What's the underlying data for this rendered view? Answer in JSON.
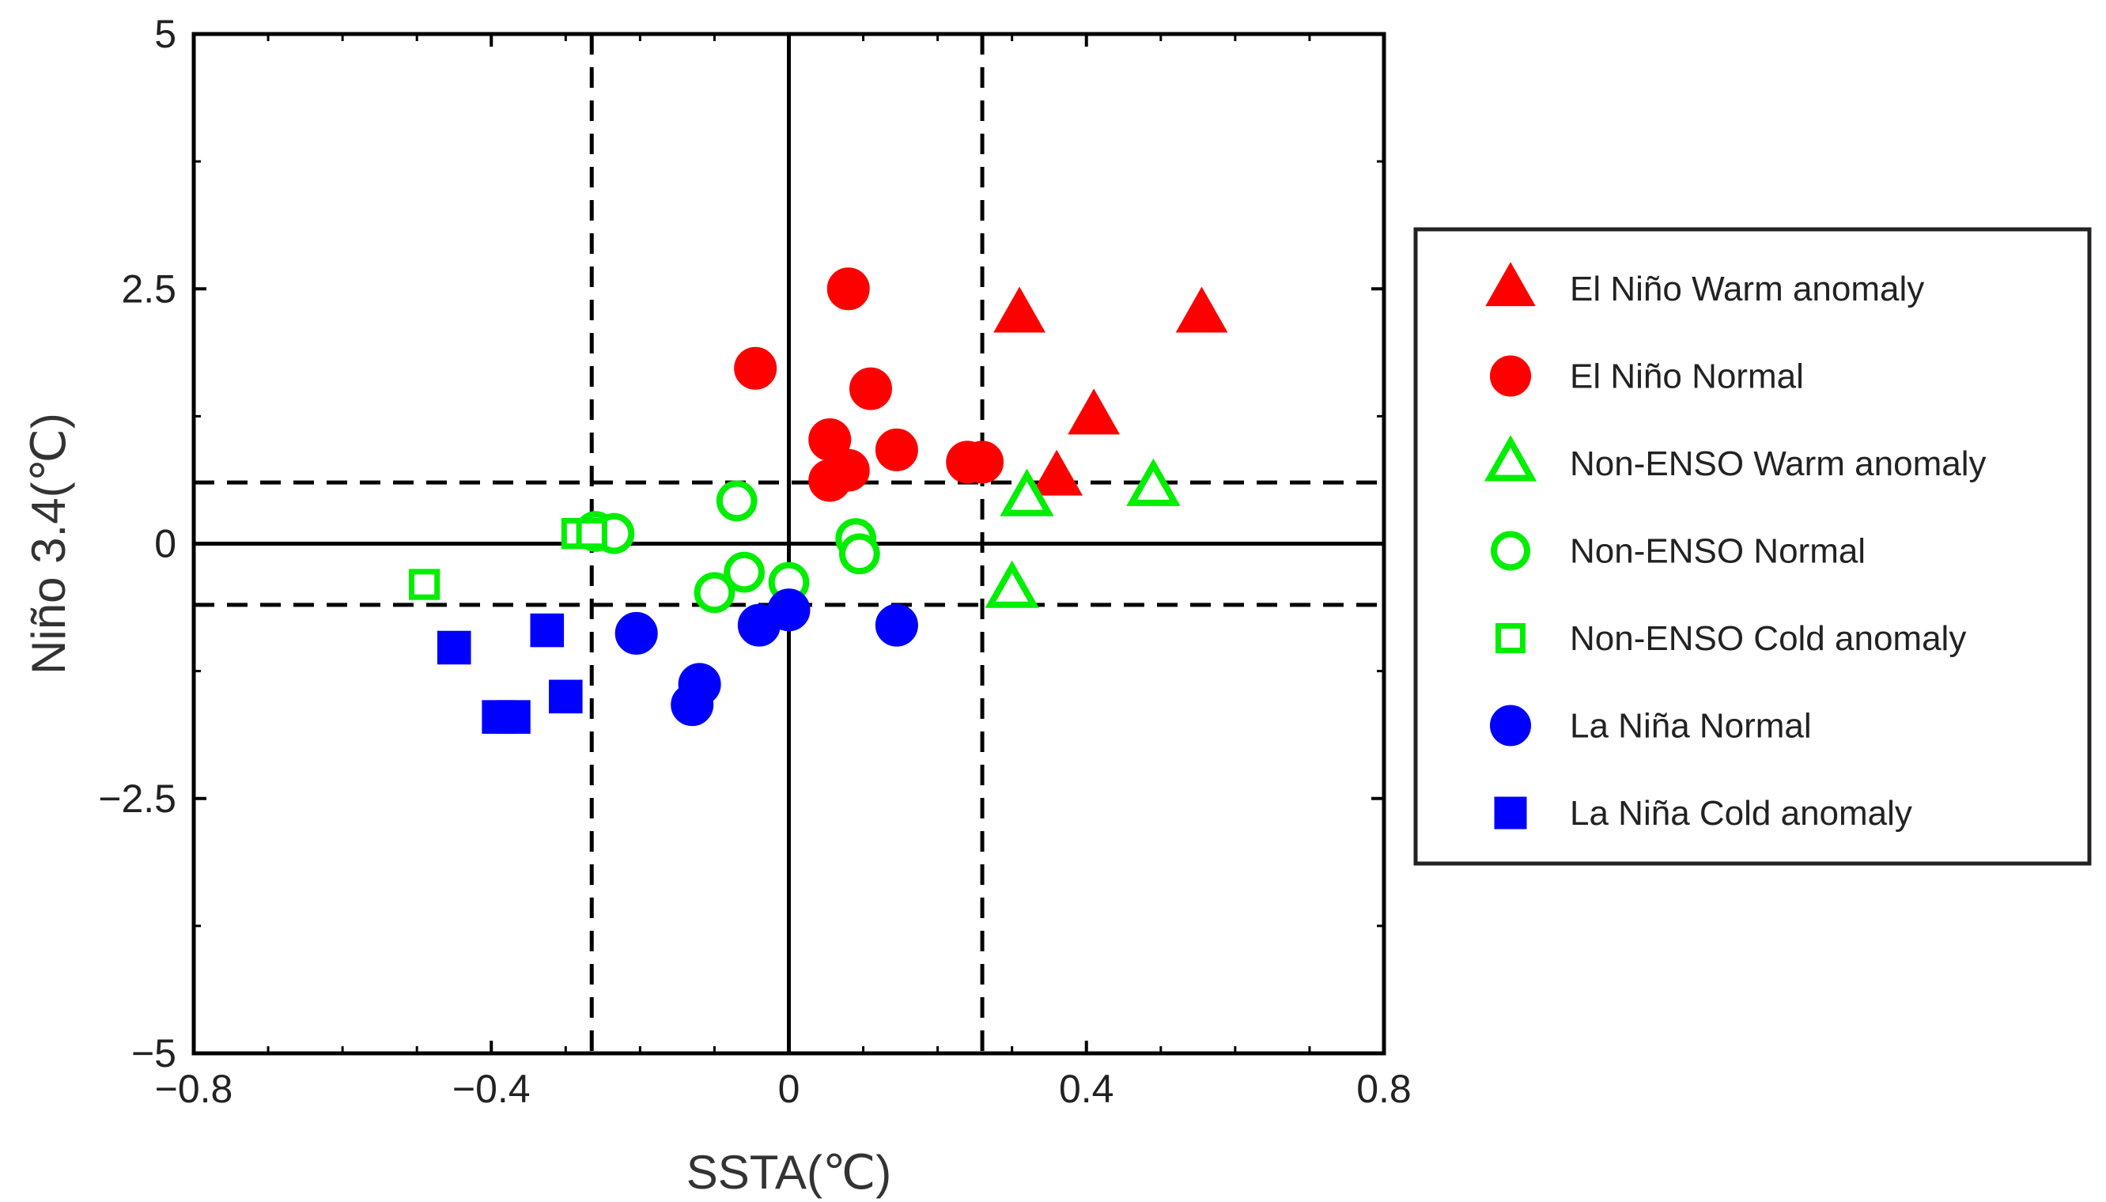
{
  "chart_data": {
    "type": "scatter",
    "title": "",
    "xlabel": "SSTA(℃)",
    "ylabel": "Niño 3.4(℃)",
    "xlim": [
      -0.8,
      0.8
    ],
    "ylim": [
      -5,
      5
    ],
    "xticks": [
      -0.8,
      -0.4,
      0,
      0.4,
      0.8
    ],
    "xtick_labels": [
      "−0.8",
      "−0.4",
      "0",
      "0.4",
      "0.8"
    ],
    "yticks": [
      -5,
      -2.5,
      0,
      2.5,
      5
    ],
    "ytick_labels": [
      "−5",
      "−2.5",
      "0",
      "2.5",
      "5"
    ],
    "minor_xticks": [
      -0.7,
      -0.6,
      -0.5,
      -0.3,
      -0.2,
      -0.1,
      0.1,
      0.2,
      0.3,
      0.5,
      0.6,
      0.7
    ],
    "minor_yticks": [
      -3.75,
      -1.25,
      1.25,
      3.75
    ],
    "reference_lines": {
      "solid": [
        {
          "axis": "x",
          "value": 0
        },
        {
          "axis": "y",
          "value": 0
        }
      ],
      "dashed": [
        {
          "axis": "x",
          "value": -0.265
        },
        {
          "axis": "x",
          "value": 0.26
        },
        {
          "axis": "y",
          "value": 0.6
        },
        {
          "axis": "y",
          "value": -0.6
        }
      ]
    },
    "legend_position": "right",
    "series": [
      {
        "name": "El Niño Warm anomaly",
        "marker": "triangle",
        "filled": true,
        "color": "#ff0000",
        "points": [
          [
            0.31,
            2.25
          ],
          [
            0.555,
            2.25
          ],
          [
            0.41,
            1.25
          ],
          [
            0.36,
            0.65
          ]
        ]
      },
      {
        "name": "El Niño Normal",
        "marker": "circle",
        "filled": true,
        "color": "#ff0000",
        "points": [
          [
            0.08,
            2.5
          ],
          [
            -0.045,
            1.72
          ],
          [
            0.11,
            1.52
          ],
          [
            0.055,
            1.02
          ],
          [
            0.145,
            0.92
          ],
          [
            0.24,
            0.8
          ],
          [
            0.26,
            0.8
          ],
          [
            0.08,
            0.72
          ],
          [
            0.055,
            0.62
          ]
        ]
      },
      {
        "name": "Non-ENSO Warm anomaly",
        "marker": "triangle",
        "filled": false,
        "color": "#00ee00",
        "points": [
          [
            0.32,
            0.45
          ],
          [
            0.49,
            0.55
          ],
          [
            0.3,
            -0.45
          ]
        ]
      },
      {
        "name": "Non-ENSO Normal",
        "marker": "circle",
        "filled": false,
        "color": "#00ee00",
        "points": [
          [
            -0.07,
            0.42
          ],
          [
            -0.26,
            0.12
          ],
          [
            -0.235,
            0.1
          ],
          [
            0.09,
            0.05
          ],
          [
            0.095,
            -0.1
          ],
          [
            -0.06,
            -0.28
          ],
          [
            0.0,
            -0.38
          ],
          [
            -0.1,
            -0.48
          ]
        ]
      },
      {
        "name": "Non-ENSO Cold anomaly",
        "marker": "square",
        "filled": false,
        "color": "#00ee00",
        "points": [
          [
            -0.49,
            -0.4
          ],
          [
            -0.285,
            0.1
          ],
          [
            -0.265,
            0.1
          ]
        ]
      },
      {
        "name": "La Niña Normal",
        "marker": "circle",
        "filled": true,
        "color": "#0000ff",
        "points": [
          [
            0.0,
            -0.65
          ],
          [
            -0.04,
            -0.8
          ],
          [
            0.145,
            -0.8
          ],
          [
            -0.205,
            -0.88
          ],
          [
            -0.12,
            -1.38
          ],
          [
            -0.13,
            -1.58
          ]
        ]
      },
      {
        "name": "La Niña Cold anomaly",
        "marker": "square",
        "filled": true,
        "color": "#0000ff",
        "points": [
          [
            -0.325,
            -0.85
          ],
          [
            -0.45,
            -1.02
          ],
          [
            -0.3,
            -1.5
          ],
          [
            -0.39,
            -1.7
          ],
          [
            -0.37,
            -1.7
          ]
        ]
      }
    ]
  }
}
